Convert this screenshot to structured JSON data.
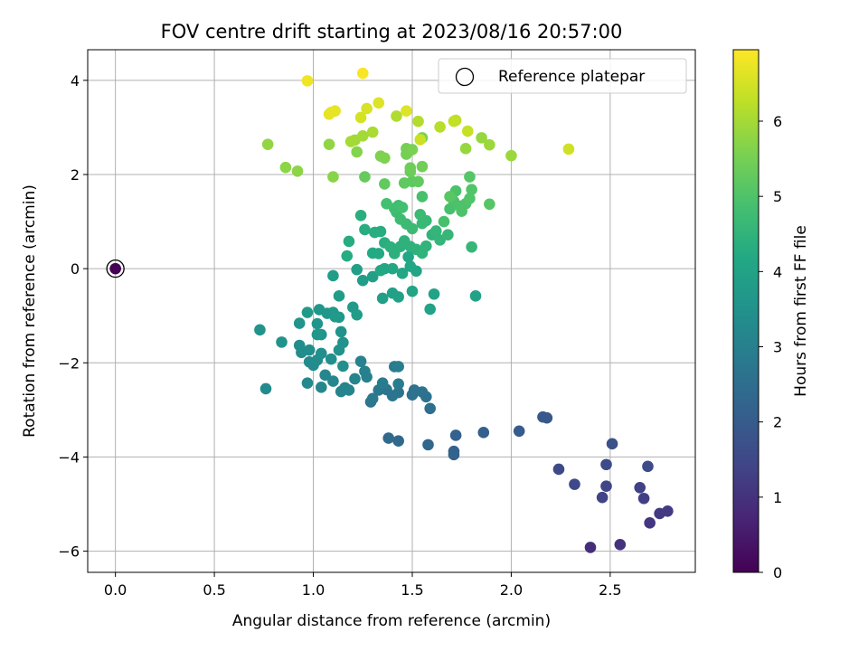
{
  "chart_data": {
    "type": "scatter",
    "title": "FOV centre drift starting at 2023/08/16 20:57:00",
    "xlabel": "Angular distance from reference (arcmin)",
    "ylabel": "Rotation from reference (arcmin)",
    "xlim": [
      -0.14,
      2.93
    ],
    "ylim": [
      -6.45,
      4.65
    ],
    "xticks": [
      "0.0",
      "0.5",
      "1.0",
      "1.5",
      "2.0",
      "2.5"
    ],
    "xtick_values": [
      0,
      0.5,
      1.0,
      1.5,
      2.0,
      2.5
    ],
    "yticks": [
      "−6",
      "−4",
      "−2",
      "0",
      "2",
      "4"
    ],
    "ytick_values": [
      -6,
      -4,
      -2,
      0,
      2,
      4
    ],
    "grid": true,
    "legend": {
      "placement": "top-right",
      "label": "Reference platepar"
    },
    "colorbar": {
      "label": "Hours from first FF file",
      "range": [
        0,
        6.95
      ],
      "ticks": [
        "0",
        "1",
        "2",
        "3",
        "4",
        "5",
        "6"
      ],
      "tick_values": [
        0,
        1,
        2,
        3,
        4,
        5,
        6
      ],
      "colormap": "viridis"
    },
    "reference_point": {
      "x": 0,
      "y": 0
    },
    "points": [
      {
        "x": 0.0,
        "y": 0.0,
        "h": 0.0
      },
      {
        "x": 2.4,
        "y": -5.92,
        "h": 0.9
      },
      {
        "x": 2.55,
        "y": -5.86,
        "h": 1.0
      },
      {
        "x": 2.7,
        "y": -5.4,
        "h": 1.1
      },
      {
        "x": 2.75,
        "y": -5.2,
        "h": 1.15
      },
      {
        "x": 2.79,
        "y": -5.15,
        "h": 1.2
      },
      {
        "x": 2.67,
        "y": -4.88,
        "h": 1.3
      },
      {
        "x": 2.65,
        "y": -4.65,
        "h": 1.35
      },
      {
        "x": 2.46,
        "y": -4.86,
        "h": 1.4
      },
      {
        "x": 2.48,
        "y": -4.62,
        "h": 1.45
      },
      {
        "x": 2.32,
        "y": -4.58,
        "h": 1.5
      },
      {
        "x": 2.24,
        "y": -4.26,
        "h": 1.55
      },
      {
        "x": 2.48,
        "y": -4.16,
        "h": 1.6
      },
      {
        "x": 2.69,
        "y": -4.2,
        "h": 1.6
      },
      {
        "x": 2.51,
        "y": -3.72,
        "h": 1.7
      },
      {
        "x": 2.16,
        "y": -3.15,
        "h": 1.9
      },
      {
        "x": 2.18,
        "y": -3.17,
        "h": 1.9
      },
      {
        "x": 2.04,
        "y": -3.45,
        "h": 2.0
      },
      {
        "x": 1.86,
        "y": -3.48,
        "h": 2.1
      },
      {
        "x": 1.72,
        "y": -3.54,
        "h": 2.15
      },
      {
        "x": 1.71,
        "y": -3.88,
        "h": 2.2
      },
      {
        "x": 1.71,
        "y": -3.95,
        "h": 2.2
      },
      {
        "x": 1.58,
        "y": -3.74,
        "h": 2.3
      },
      {
        "x": 1.43,
        "y": -3.66,
        "h": 2.35
      },
      {
        "x": 1.38,
        "y": -3.6,
        "h": 2.4
      },
      {
        "x": 1.59,
        "y": -2.97,
        "h": 2.5
      },
      {
        "x": 1.57,
        "y": -2.72,
        "h": 2.55
      },
      {
        "x": 1.55,
        "y": -2.62,
        "h": 2.6
      },
      {
        "x": 1.51,
        "y": -2.58,
        "h": 2.6
      },
      {
        "x": 1.5,
        "y": -2.68,
        "h": 2.6
      },
      {
        "x": 1.43,
        "y": -2.63,
        "h": 2.65
      },
      {
        "x": 1.4,
        "y": -2.7,
        "h": 2.7
      },
      {
        "x": 1.37,
        "y": -2.57,
        "h": 2.7
      },
      {
        "x": 1.33,
        "y": -2.58,
        "h": 2.75
      },
      {
        "x": 1.29,
        "y": -2.83,
        "h": 2.75
      },
      {
        "x": 1.3,
        "y": -2.76,
        "h": 2.8
      },
      {
        "x": 1.35,
        "y": -2.43,
        "h": 2.85
      },
      {
        "x": 1.43,
        "y": -2.45,
        "h": 2.9
      },
      {
        "x": 1.41,
        "y": -2.08,
        "h": 2.9
      },
      {
        "x": 1.43,
        "y": -2.08,
        "h": 2.95
      },
      {
        "x": 1.27,
        "y": -2.3,
        "h": 3.0
      },
      {
        "x": 1.26,
        "y": -2.18,
        "h": 3.0
      },
      {
        "x": 1.24,
        "y": -1.97,
        "h": 3.05
      },
      {
        "x": 1.21,
        "y": -2.34,
        "h": 3.1
      },
      {
        "x": 1.18,
        "y": -2.58,
        "h": 3.1
      },
      {
        "x": 1.14,
        "y": -2.61,
        "h": 3.15
      },
      {
        "x": 1.16,
        "y": -2.53,
        "h": 3.15
      },
      {
        "x": 1.1,
        "y": -2.39,
        "h": 3.2
      },
      {
        "x": 1.06,
        "y": -2.26,
        "h": 3.2
      },
      {
        "x": 1.04,
        "y": -2.52,
        "h": 3.2
      },
      {
        "x": 0.97,
        "y": -2.43,
        "h": 3.25
      },
      {
        "x": 0.76,
        "y": -2.55,
        "h": 3.3
      },
      {
        "x": 1.0,
        "y": -2.05,
        "h": 3.3
      },
      {
        "x": 0.98,
        "y": -1.98,
        "h": 3.3
      },
      {
        "x": 1.02,
        "y": -1.94,
        "h": 3.35
      },
      {
        "x": 0.94,
        "y": -1.78,
        "h": 3.35
      },
      {
        "x": 0.93,
        "y": -1.63,
        "h": 3.4
      },
      {
        "x": 0.98,
        "y": -1.73,
        "h": 3.4
      },
      {
        "x": 1.04,
        "y": -1.8,
        "h": 3.45
      },
      {
        "x": 1.09,
        "y": -1.92,
        "h": 3.45
      },
      {
        "x": 1.15,
        "y": -2.07,
        "h": 3.45
      },
      {
        "x": 1.13,
        "y": -1.73,
        "h": 3.5
      },
      {
        "x": 1.15,
        "y": -1.57,
        "h": 3.5
      },
      {
        "x": 1.14,
        "y": -1.34,
        "h": 3.55
      },
      {
        "x": 0.84,
        "y": -1.56,
        "h": 3.55
      },
      {
        "x": 0.73,
        "y": -1.3,
        "h": 3.55
      },
      {
        "x": 0.93,
        "y": -1.16,
        "h": 3.6
      },
      {
        "x": 1.02,
        "y": -1.17,
        "h": 3.6
      },
      {
        "x": 1.04,
        "y": -1.4,
        "h": 3.6
      },
      {
        "x": 1.02,
        "y": -1.4,
        "h": 3.65
      },
      {
        "x": 1.03,
        "y": -0.87,
        "h": 3.65
      },
      {
        "x": 1.07,
        "y": -0.95,
        "h": 3.7
      },
      {
        "x": 1.1,
        "y": -0.93,
        "h": 3.7
      },
      {
        "x": 1.13,
        "y": -1.03,
        "h": 3.7
      },
      {
        "x": 1.11,
        "y": -1.02,
        "h": 3.75
      },
      {
        "x": 0.97,
        "y": -0.93,
        "h": 3.75
      },
      {
        "x": 1.2,
        "y": -0.82,
        "h": 3.75
      },
      {
        "x": 1.22,
        "y": -0.98,
        "h": 3.8
      },
      {
        "x": 1.13,
        "y": -0.58,
        "h": 3.8
      },
      {
        "x": 1.1,
        "y": -0.15,
        "h": 3.85
      },
      {
        "x": 1.25,
        "y": -0.25,
        "h": 3.85
      },
      {
        "x": 1.22,
        "y": -0.02,
        "h": 3.9
      },
      {
        "x": 1.3,
        "y": -0.17,
        "h": 3.9
      },
      {
        "x": 1.35,
        "y": -0.63,
        "h": 3.9
      },
      {
        "x": 1.4,
        "y": -0.52,
        "h": 3.95
      },
      {
        "x": 1.43,
        "y": -0.6,
        "h": 3.95
      },
      {
        "x": 1.59,
        "y": -0.86,
        "h": 4.0
      },
      {
        "x": 1.61,
        "y": -0.54,
        "h": 4.0
      },
      {
        "x": 1.82,
        "y": -0.58,
        "h": 4.0
      },
      {
        "x": 1.5,
        "y": -0.48,
        "h": 4.05
      },
      {
        "x": 1.52,
        "y": -0.05,
        "h": 4.05
      },
      {
        "x": 1.49,
        "y": 0.05,
        "h": 4.1
      },
      {
        "x": 1.48,
        "y": 0.25,
        "h": 4.1
      },
      {
        "x": 1.45,
        "y": -0.1,
        "h": 4.1
      },
      {
        "x": 1.4,
        "y": 0.0,
        "h": 4.15
      },
      {
        "x": 1.36,
        "y": 0.0,
        "h": 4.15
      },
      {
        "x": 1.34,
        "y": -0.04,
        "h": 4.15
      },
      {
        "x": 1.3,
        "y": 0.33,
        "h": 4.2
      },
      {
        "x": 1.33,
        "y": 0.32,
        "h": 4.2
      },
      {
        "x": 1.17,
        "y": 0.27,
        "h": 4.25
      },
      {
        "x": 1.18,
        "y": 0.58,
        "h": 4.25
      },
      {
        "x": 1.26,
        "y": 0.83,
        "h": 4.3
      },
      {
        "x": 1.31,
        "y": 0.77,
        "h": 4.3
      },
      {
        "x": 1.34,
        "y": 0.79,
        "h": 4.3
      },
      {
        "x": 1.24,
        "y": 1.13,
        "h": 4.35
      },
      {
        "x": 1.36,
        "y": 0.55,
        "h": 4.35
      },
      {
        "x": 1.39,
        "y": 0.46,
        "h": 4.4
      },
      {
        "x": 1.41,
        "y": 0.32,
        "h": 4.4
      },
      {
        "x": 1.44,
        "y": 0.47,
        "h": 4.4
      },
      {
        "x": 1.46,
        "y": 0.59,
        "h": 4.45
      },
      {
        "x": 1.49,
        "y": 0.47,
        "h": 4.45
      },
      {
        "x": 1.52,
        "y": 0.41,
        "h": 4.45
      },
      {
        "x": 1.55,
        "y": 0.33,
        "h": 4.5
      },
      {
        "x": 1.57,
        "y": 0.48,
        "h": 4.5
      },
      {
        "x": 1.6,
        "y": 0.72,
        "h": 4.5
      },
      {
        "x": 1.62,
        "y": 0.8,
        "h": 4.55
      },
      {
        "x": 1.64,
        "y": 0.61,
        "h": 4.55
      },
      {
        "x": 1.68,
        "y": 0.72,
        "h": 4.6
      },
      {
        "x": 1.8,
        "y": 0.46,
        "h": 4.6
      },
      {
        "x": 1.57,
        "y": 1.02,
        "h": 4.65
      },
      {
        "x": 1.55,
        "y": 0.96,
        "h": 4.65
      },
      {
        "x": 1.54,
        "y": 1.15,
        "h": 4.7
      },
      {
        "x": 1.5,
        "y": 0.85,
        "h": 4.7
      },
      {
        "x": 1.47,
        "y": 0.95,
        "h": 4.7
      },
      {
        "x": 1.44,
        "y": 1.05,
        "h": 4.75
      },
      {
        "x": 1.42,
        "y": 1.2,
        "h": 4.75
      },
      {
        "x": 1.41,
        "y": 1.28,
        "h": 4.8
      },
      {
        "x": 1.43,
        "y": 1.34,
        "h": 4.8
      },
      {
        "x": 1.37,
        "y": 1.38,
        "h": 4.85
      },
      {
        "x": 1.45,
        "y": 1.3,
        "h": 4.85
      },
      {
        "x": 1.55,
        "y": 1.53,
        "h": 4.9
      },
      {
        "x": 1.66,
        "y": 1.0,
        "h": 4.9
      },
      {
        "x": 1.69,
        "y": 1.27,
        "h": 4.9
      },
      {
        "x": 1.71,
        "y": 1.43,
        "h": 4.95
      },
      {
        "x": 1.72,
        "y": 1.65,
        "h": 4.95
      },
      {
        "x": 1.74,
        "y": 1.33,
        "h": 5.0
      },
      {
        "x": 1.75,
        "y": 1.22,
        "h": 5.0
      },
      {
        "x": 1.77,
        "y": 1.38,
        "h": 5.0
      },
      {
        "x": 1.79,
        "y": 1.49,
        "h": 5.05
      },
      {
        "x": 1.8,
        "y": 1.68,
        "h": 5.05
      },
      {
        "x": 1.79,
        "y": 1.95,
        "h": 5.1
      },
      {
        "x": 1.89,
        "y": 1.37,
        "h": 5.1
      },
      {
        "x": 1.69,
        "y": 1.53,
        "h": 5.15
      },
      {
        "x": 1.46,
        "y": 1.82,
        "h": 5.2
      },
      {
        "x": 1.5,
        "y": 1.85,
        "h": 5.2
      },
      {
        "x": 1.53,
        "y": 1.85,
        "h": 5.25
      },
      {
        "x": 1.36,
        "y": 1.8,
        "h": 5.25
      },
      {
        "x": 1.26,
        "y": 1.95,
        "h": 5.3
      },
      {
        "x": 1.49,
        "y": 2.06,
        "h": 5.35
      },
      {
        "x": 1.49,
        "y": 2.14,
        "h": 5.4
      },
      {
        "x": 1.55,
        "y": 2.17,
        "h": 5.45
      },
      {
        "x": 1.47,
        "y": 2.43,
        "h": 5.5
      },
      {
        "x": 1.47,
        "y": 2.55,
        "h": 5.5
      },
      {
        "x": 1.5,
        "y": 2.53,
        "h": 5.55
      },
      {
        "x": 1.55,
        "y": 2.78,
        "h": 5.55
      },
      {
        "x": 1.36,
        "y": 2.35,
        "h": 5.6
      },
      {
        "x": 1.34,
        "y": 2.39,
        "h": 5.6
      },
      {
        "x": 1.22,
        "y": 2.48,
        "h": 5.65
      },
      {
        "x": 1.1,
        "y": 1.95,
        "h": 5.7
      },
      {
        "x": 0.92,
        "y": 2.07,
        "h": 5.75
      },
      {
        "x": 0.86,
        "y": 2.15,
        "h": 5.75
      },
      {
        "x": 0.77,
        "y": 2.64,
        "h": 5.8
      },
      {
        "x": 1.08,
        "y": 2.64,
        "h": 5.8
      },
      {
        "x": 1.77,
        "y": 2.55,
        "h": 5.85
      },
      {
        "x": 1.85,
        "y": 2.78,
        "h": 5.85
      },
      {
        "x": 1.89,
        "y": 2.63,
        "h": 5.9
      },
      {
        "x": 2.0,
        "y": 2.4,
        "h": 5.9
      },
      {
        "x": 1.21,
        "y": 2.73,
        "h": 5.95
      },
      {
        "x": 1.25,
        "y": 2.82,
        "h": 6.0
      },
      {
        "x": 1.19,
        "y": 2.7,
        "h": 6.0
      },
      {
        "x": 1.3,
        "y": 2.9,
        "h": 6.05
      },
      {
        "x": 1.42,
        "y": 3.24,
        "h": 6.1
      },
      {
        "x": 1.53,
        "y": 3.13,
        "h": 6.15
      },
      {
        "x": 1.64,
        "y": 3.01,
        "h": 6.2
      },
      {
        "x": 1.72,
        "y": 3.15,
        "h": 6.25
      },
      {
        "x": 1.71,
        "y": 3.13,
        "h": 6.3
      },
      {
        "x": 1.78,
        "y": 2.92,
        "h": 6.35
      },
      {
        "x": 1.54,
        "y": 2.74,
        "h": 6.4
      },
      {
        "x": 2.29,
        "y": 2.54,
        "h": 6.45
      },
      {
        "x": 1.24,
        "y": 3.21,
        "h": 6.5
      },
      {
        "x": 1.27,
        "y": 3.4,
        "h": 6.55
      },
      {
        "x": 1.33,
        "y": 3.52,
        "h": 6.6
      },
      {
        "x": 1.47,
        "y": 3.35,
        "h": 6.6
      },
      {
        "x": 1.09,
        "y": 3.32,
        "h": 6.65
      },
      {
        "x": 1.11,
        "y": 3.35,
        "h": 6.7
      },
      {
        "x": 1.08,
        "y": 3.28,
        "h": 6.7
      },
      {
        "x": 0.97,
        "y": 3.99,
        "h": 6.8
      },
      {
        "x": 1.25,
        "y": 4.15,
        "h": 6.9
      }
    ]
  }
}
